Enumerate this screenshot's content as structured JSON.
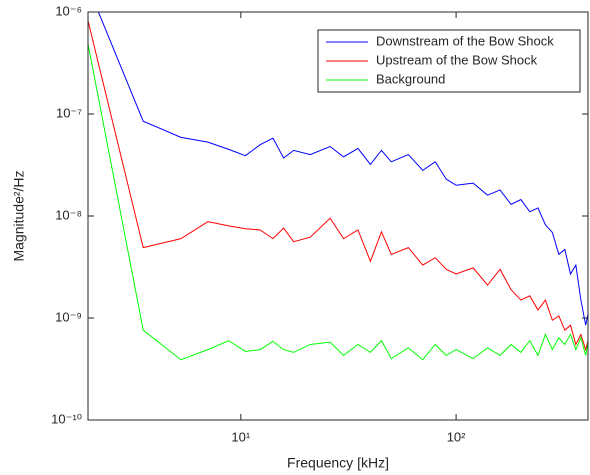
{
  "chart_data": {
    "type": "line",
    "x_label": "Frequency [kHz]",
    "y_label": "Magnitude²/Hz",
    "log_x": true,
    "log_y": true,
    "xlim": [
      1.95,
      410
    ],
    "ylim": [
      1e-10,
      1e-06
    ],
    "xticks": [
      {
        "value": 10,
        "label": "10¹"
      },
      {
        "value": 100,
        "label": "10²"
      }
    ],
    "yticks": [
      {
        "value": 1e-10,
        "label": "10⁻¹⁰"
      },
      {
        "value": 1e-09,
        "label": "10⁻⁹"
      },
      {
        "value": 1e-08,
        "label": "10⁻⁸"
      },
      {
        "value": 1e-07,
        "label": "10⁻⁷"
      },
      {
        "value": 1e-06,
        "label": "10⁻⁶"
      }
    ],
    "legend": "upper right",
    "x": [
      1.76,
      3.52,
      5.27,
      7.03,
      8.79,
      10.5,
      12.3,
      14.1,
      15.8,
      17.6,
      21,
      26,
      30,
      35,
      40,
      45,
      50,
      60,
      70,
      80,
      90,
      100,
      120,
      140,
      160,
      180,
      200,
      220,
      240,
      260,
      280,
      300,
      320,
      340,
      360,
      380,
      400,
      410
    ],
    "series": [
      {
        "name": "Downstream of the Bow Shock",
        "color": "#0000ff",
        "values": [
          3e-06,
          8.5e-08,
          5.9e-08,
          5.3e-08,
          4.5e-08,
          3.9e-08,
          5e-08,
          5.8e-08,
          3.7e-08,
          4.4e-08,
          4e-08,
          4.8e-08,
          3.8e-08,
          4.6e-08,
          3.2e-08,
          4.4e-08,
          3.4e-08,
          4e-08,
          2.8e-08,
          3.4e-08,
          2.3e-08,
          2e-08,
          2.1e-08,
          1.6e-08,
          1.8e-08,
          1.3e-08,
          1.45e-08,
          1.1e-08,
          1.2e-08,
          8.2e-09,
          6.9e-09,
          4.2e-09,
          4.7e-09,
          2.7e-09,
          3.3e-09,
          1.5e-09,
          8.5e-10,
          1.1e-09
        ]
      },
      {
        "name": "Upstream of the Bow Shock",
        "color": "#ff0000",
        "values": [
          2e-06,
          4.9e-09,
          6e-09,
          8.8e-09,
          8e-09,
          7.5e-09,
          7.3e-09,
          6e-09,
          7.6e-09,
          5.6e-09,
          6.2e-09,
          9.5e-09,
          6e-09,
          7.3e-09,
          3.6e-09,
          7e-09,
          4.2e-09,
          4.9e-09,
          3.3e-09,
          3.9e-09,
          3e-09,
          2.7e-09,
          3.1e-09,
          2.1e-09,
          3e-09,
          1.9e-09,
          1.5e-09,
          1.65e-09,
          1.2e-09,
          1.5e-09,
          9.5e-10,
          1.05e-09,
          7.6e-10,
          8.5e-10,
          5.5e-10,
          6.9e-10,
          4.9e-10,
          6e-10
        ]
      },
      {
        "name": "Background",
        "color": "#00ff00",
        "values": [
          1.5e-06,
          7.6e-10,
          3.9e-10,
          4.9e-10,
          6e-10,
          4.7e-10,
          4.9e-10,
          5.9e-10,
          4.9e-10,
          4.6e-10,
          5.5e-10,
          5.8e-10,
          4.3e-10,
          5.5e-10,
          4.6e-10,
          6e-10,
          4e-10,
          5.1e-10,
          3.9e-10,
          5.5e-10,
          4.3e-10,
          4.9e-10,
          4e-10,
          5.1e-10,
          4.3e-10,
          5.5e-10,
          4.6e-10,
          6e-10,
          4.3e-10,
          6.9e-10,
          4.9e-10,
          6.4e-10,
          5.5e-10,
          6.9e-10,
          4.9e-10,
          6.4e-10,
          4.3e-10,
          5.8e-10
        ]
      }
    ]
  }
}
